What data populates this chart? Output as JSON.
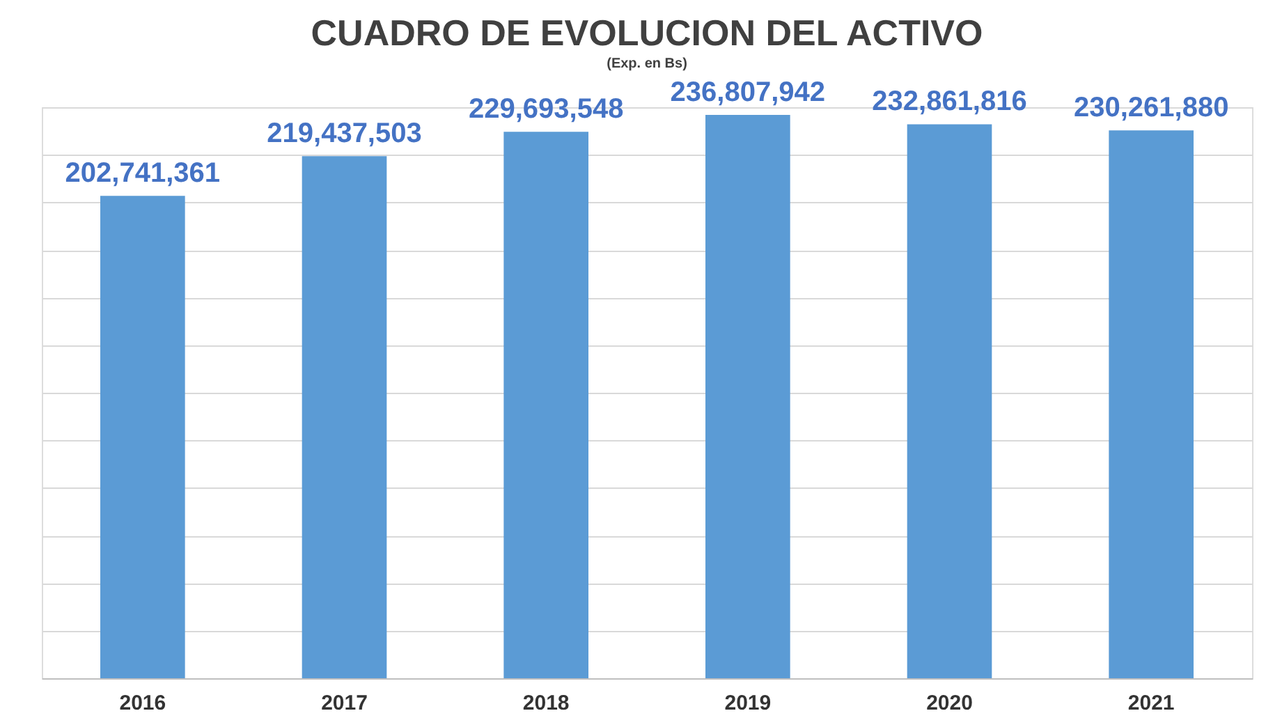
{
  "chart_data": {
    "type": "bar",
    "title": "CUADRO DE EVOLUCION DEL ACTIVO",
    "subtitle": "(Exp. en Bs)",
    "categories": [
      "2016",
      "2017",
      "2018",
      "2019",
      "2020",
      "2021"
    ],
    "values": [
      202741361,
      219437503,
      229693548,
      236807942,
      232861816,
      230261880
    ],
    "value_labels": [
      "202,741,361",
      "219,437,503",
      "229,693,548",
      "236,807,942",
      "232,861,816",
      "230,261,880"
    ],
    "color": "#5b9bd5",
    "grid": "y",
    "tick_labels": "x"
  }
}
